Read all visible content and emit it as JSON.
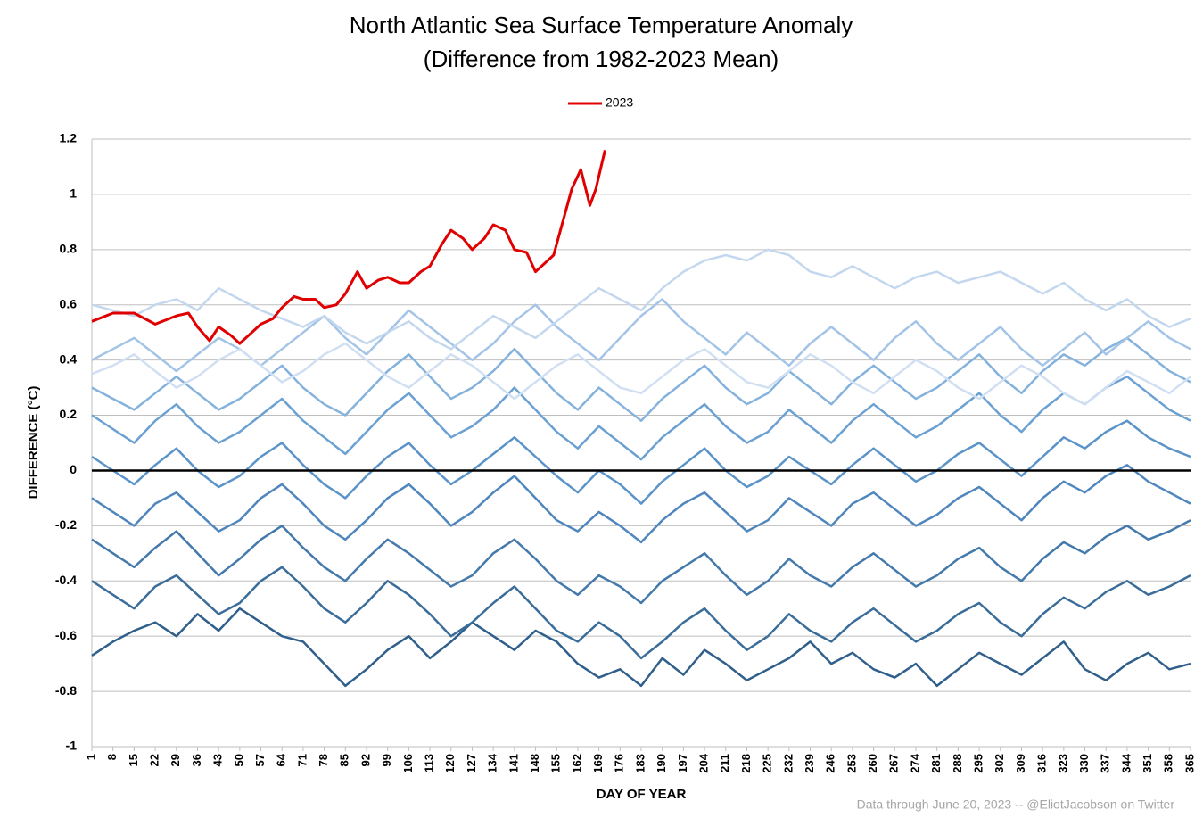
{
  "chart_data": {
    "type": "line",
    "title": "North Atlantic Sea Surface Temperature Anomaly",
    "subtitle": "(Difference from 1982-2023 Mean)",
    "x_label": "DAY OF YEAR",
    "y_label": "DIFFERENCE (°C)",
    "note": "Data through June 20, 2023 -- @EliotJacobson on Twitter",
    "grid": true,
    "zero_line": true,
    "legend": "top",
    "xlim": [
      1,
      365
    ],
    "xticks": [
      1,
      8,
      15,
      22,
      29,
      36,
      43,
      50,
      57,
      64,
      71,
      78,
      85,
      92,
      99,
      106,
      113,
      120,
      127,
      134,
      141,
      148,
      155,
      162,
      169,
      176,
      183,
      190,
      197,
      204,
      211,
      218,
      225,
      232,
      239,
      246,
      253,
      260,
      267,
      274,
      281,
      288,
      295,
      302,
      309,
      316,
      323,
      330,
      337,
      344,
      351,
      358,
      365
    ],
    "ylim": [
      -1,
      1.2
    ],
    "yticks": [
      -1,
      -0.8,
      -0.6,
      -0.4,
      -0.2,
      0,
      0.2,
      0.4,
      0.6,
      0.8,
      1,
      1.2
    ],
    "x": [
      1,
      8,
      15,
      22,
      29,
      36,
      43,
      50,
      57,
      64,
      71,
      78,
      85,
      92,
      99,
      106,
      113,
      120,
      127,
      134,
      141,
      148,
      155,
      162,
      169,
      176,
      183,
      190,
      197,
      204,
      211,
      218,
      225,
      232,
      239,
      246,
      253,
      260,
      267,
      274,
      281,
      288,
      295,
      302,
      309,
      316,
      323,
      330,
      337,
      344,
      351,
      358,
      365
    ],
    "series": [
      {
        "color": "#2f5f8a",
        "values": [
          -0.67,
          -0.62,
          -0.58,
          -0.55,
          -0.6,
          -0.52,
          -0.58,
          -0.5,
          -0.55,
          -0.6,
          -0.62,
          -0.7,
          -0.78,
          -0.72,
          -0.65,
          -0.6,
          -0.68,
          -0.62,
          -0.55,
          -0.6,
          -0.65,
          -0.58,
          -0.62,
          -0.7,
          -0.75,
          -0.72,
          -0.78,
          -0.68,
          -0.74,
          -0.65,
          -0.7,
          -0.76,
          -0.72,
          -0.68,
          -0.62,
          -0.7,
          -0.66,
          -0.72,
          -0.75,
          -0.7,
          -0.78,
          -0.72,
          -0.66,
          -0.7,
          -0.74,
          -0.68,
          -0.62,
          -0.72,
          -0.76,
          -0.7,
          -0.66,
          -0.72,
          -0.7
        ]
      },
      {
        "color": "#3a6d99",
        "values": [
          -0.4,
          -0.45,
          -0.5,
          -0.42,
          -0.38,
          -0.45,
          -0.52,
          -0.48,
          -0.4,
          -0.35,
          -0.42,
          -0.5,
          -0.55,
          -0.48,
          -0.4,
          -0.45,
          -0.52,
          -0.6,
          -0.55,
          -0.48,
          -0.42,
          -0.5,
          -0.58,
          -0.62,
          -0.55,
          -0.6,
          -0.68,
          -0.62,
          -0.55,
          -0.5,
          -0.58,
          -0.65,
          -0.6,
          -0.52,
          -0.58,
          -0.62,
          -0.55,
          -0.5,
          -0.56,
          -0.62,
          -0.58,
          -0.52,
          -0.48,
          -0.55,
          -0.6,
          -0.52,
          -0.46,
          -0.5,
          -0.44,
          -0.4,
          -0.45,
          -0.42,
          -0.38
        ]
      },
      {
        "color": "#4479ab",
        "values": [
          -0.25,
          -0.3,
          -0.35,
          -0.28,
          -0.22,
          -0.3,
          -0.38,
          -0.32,
          -0.25,
          -0.2,
          -0.28,
          -0.35,
          -0.4,
          -0.32,
          -0.25,
          -0.3,
          -0.36,
          -0.42,
          -0.38,
          -0.3,
          -0.25,
          -0.32,
          -0.4,
          -0.45,
          -0.38,
          -0.42,
          -0.48,
          -0.4,
          -0.35,
          -0.3,
          -0.38,
          -0.45,
          -0.4,
          -0.32,
          -0.38,
          -0.42,
          -0.35,
          -0.3,
          -0.36,
          -0.42,
          -0.38,
          -0.32,
          -0.28,
          -0.35,
          -0.4,
          -0.32,
          -0.26,
          -0.3,
          -0.24,
          -0.2,
          -0.25,
          -0.22,
          -0.18
        ]
      },
      {
        "color": "#4f86bd",
        "values": [
          -0.1,
          -0.15,
          -0.2,
          -0.12,
          -0.08,
          -0.15,
          -0.22,
          -0.18,
          -0.1,
          -0.05,
          -0.12,
          -0.2,
          -0.25,
          -0.18,
          -0.1,
          -0.05,
          -0.12,
          -0.2,
          -0.15,
          -0.08,
          -0.02,
          -0.1,
          -0.18,
          -0.22,
          -0.15,
          -0.2,
          -0.26,
          -0.18,
          -0.12,
          -0.08,
          -0.15,
          -0.22,
          -0.18,
          -0.1,
          -0.15,
          -0.2,
          -0.12,
          -0.08,
          -0.14,
          -0.2,
          -0.16,
          -0.1,
          -0.06,
          -0.12,
          -0.18,
          -0.1,
          -0.04,
          -0.08,
          -0.02,
          0.02,
          -0.04,
          -0.08,
          -0.12
        ]
      },
      {
        "color": "#5a93c8",
        "values": [
          0.05,
          0.0,
          -0.05,
          0.02,
          0.08,
          0.0,
          -0.06,
          -0.02,
          0.05,
          0.1,
          0.02,
          -0.05,
          -0.1,
          -0.02,
          0.05,
          0.1,
          0.02,
          -0.05,
          0.0,
          0.06,
          0.12,
          0.05,
          -0.02,
          -0.08,
          0.0,
          -0.05,
          -0.12,
          -0.04,
          0.02,
          0.08,
          0.0,
          -0.06,
          -0.02,
          0.05,
          0.0,
          -0.05,
          0.02,
          0.08,
          0.02,
          -0.04,
          0.0,
          0.06,
          0.1,
          0.04,
          -0.02,
          0.05,
          0.12,
          0.08,
          0.14,
          0.18,
          0.12,
          0.08,
          0.05
        ]
      },
      {
        "color": "#6aa0d2",
        "values": [
          0.2,
          0.15,
          0.1,
          0.18,
          0.24,
          0.16,
          0.1,
          0.14,
          0.2,
          0.26,
          0.18,
          0.12,
          0.06,
          0.14,
          0.22,
          0.28,
          0.2,
          0.12,
          0.16,
          0.22,
          0.3,
          0.22,
          0.14,
          0.08,
          0.16,
          0.1,
          0.04,
          0.12,
          0.18,
          0.24,
          0.16,
          0.1,
          0.14,
          0.22,
          0.16,
          0.1,
          0.18,
          0.24,
          0.18,
          0.12,
          0.16,
          0.22,
          0.28,
          0.2,
          0.14,
          0.22,
          0.28,
          0.24,
          0.3,
          0.34,
          0.28,
          0.22,
          0.18
        ]
      },
      {
        "color": "#85b2dc",
        "values": [
          0.3,
          0.26,
          0.22,
          0.28,
          0.34,
          0.28,
          0.22,
          0.26,
          0.32,
          0.38,
          0.3,
          0.24,
          0.2,
          0.28,
          0.36,
          0.42,
          0.34,
          0.26,
          0.3,
          0.36,
          0.44,
          0.36,
          0.28,
          0.22,
          0.3,
          0.24,
          0.18,
          0.26,
          0.32,
          0.38,
          0.3,
          0.24,
          0.28,
          0.36,
          0.3,
          0.24,
          0.32,
          0.38,
          0.32,
          0.26,
          0.3,
          0.36,
          0.42,
          0.34,
          0.28,
          0.36,
          0.42,
          0.38,
          0.44,
          0.48,
          0.42,
          0.36,
          0.32
        ]
      },
      {
        "color": "#a3c4e6",
        "values": [
          0.4,
          0.44,
          0.48,
          0.42,
          0.36,
          0.42,
          0.48,
          0.44,
          0.38,
          0.44,
          0.5,
          0.56,
          0.48,
          0.42,
          0.5,
          0.58,
          0.52,
          0.46,
          0.4,
          0.46,
          0.54,
          0.6,
          0.52,
          0.46,
          0.4,
          0.48,
          0.56,
          0.62,
          0.54,
          0.48,
          0.42,
          0.5,
          0.44,
          0.38,
          0.46,
          0.52,
          0.46,
          0.4,
          0.48,
          0.54,
          0.46,
          0.4,
          0.46,
          0.52,
          0.44,
          0.38,
          0.44,
          0.5,
          0.42,
          0.48,
          0.54,
          0.48,
          0.44
        ]
      },
      {
        "color": "#c3d7ee",
        "values": [
          0.6,
          0.58,
          0.56,
          0.6,
          0.62,
          0.58,
          0.66,
          0.62,
          0.58,
          0.55,
          0.52,
          0.56,
          0.5,
          0.46,
          0.5,
          0.54,
          0.48,
          0.44,
          0.5,
          0.56,
          0.52,
          0.48,
          0.54,
          0.6,
          0.66,
          0.62,
          0.58,
          0.66,
          0.72,
          0.76,
          0.78,
          0.76,
          0.8,
          0.78,
          0.72,
          0.7,
          0.74,
          0.7,
          0.66,
          0.7,
          0.72,
          0.68,
          0.7,
          0.72,
          0.68,
          0.64,
          0.68,
          0.62,
          0.58,
          0.62,
          0.56,
          0.52,
          0.55
        ]
      },
      {
        "color": "#d0dff2",
        "values": [
          0.35,
          0.38,
          0.42,
          0.36,
          0.3,
          0.34,
          0.4,
          0.44,
          0.38,
          0.32,
          0.36,
          0.42,
          0.46,
          0.4,
          0.34,
          0.3,
          0.36,
          0.42,
          0.38,
          0.32,
          0.26,
          0.32,
          0.38,
          0.42,
          0.36,
          0.3,
          0.28,
          0.34,
          0.4,
          0.44,
          0.38,
          0.32,
          0.3,
          0.36,
          0.42,
          0.38,
          0.32,
          0.28,
          0.34,
          0.4,
          0.36,
          0.3,
          0.26,
          0.32,
          0.38,
          0.34,
          0.28,
          0.24,
          0.3,
          0.36,
          0.32,
          0.28,
          0.34
        ]
      },
      {
        "name": "2023",
        "color": "#e00000",
        "x": [
          1,
          8,
          15,
          22,
          29,
          33,
          36,
          40,
          43,
          47,
          50,
          54,
          57,
          61,
          64,
          68,
          71,
          75,
          78,
          82,
          85,
          89,
          92,
          96,
          99,
          103,
          106,
          110,
          113,
          117,
          120,
          124,
          127,
          131,
          134,
          138,
          141,
          145,
          148,
          151,
          154,
          157,
          160,
          163,
          166,
          168,
          171
        ],
        "values": [
          0.54,
          0.57,
          0.57,
          0.53,
          0.56,
          0.57,
          0.52,
          0.47,
          0.52,
          0.49,
          0.46,
          0.5,
          0.53,
          0.55,
          0.59,
          0.63,
          0.62,
          0.62,
          0.59,
          0.6,
          0.64,
          0.72,
          0.66,
          0.69,
          0.7,
          0.68,
          0.68,
          0.72,
          0.74,
          0.82,
          0.87,
          0.84,
          0.8,
          0.84,
          0.89,
          0.87,
          0.8,
          0.79,
          0.72,
          0.75,
          0.78,
          0.9,
          1.02,
          1.09,
          0.96,
          1.02,
          1.16
        ]
      }
    ]
  }
}
